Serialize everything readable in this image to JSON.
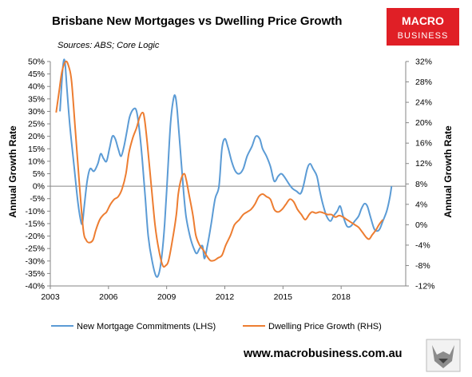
{
  "chart_data": {
    "type": "line",
    "title": "Brisbane New Mortgages vs Dwelling Price Growth",
    "subtitle": "Sources: ABS; Core Logic",
    "ylabel_left": "Annual Growth Rate",
    "ylabel_right": "Annual Growth Rate",
    "xlim": [
      2003,
      2021.33
    ],
    "x_ticks": [
      2003,
      2006,
      2009,
      2012,
      2015,
      2018
    ],
    "x_tick_labels": [
      "2003",
      "2006",
      "2009",
      "2012",
      "2015",
      "2018"
    ],
    "ylim_left": [
      -40,
      50
    ],
    "ylim_right": [
      -12,
      32
    ],
    "y_ticks_left": [
      "50%",
      "45%",
      "40%",
      "35%",
      "30%",
      "25%",
      "20%",
      "15%",
      "10%",
      "5%",
      "0%",
      "-5%",
      "-10%",
      "-15%",
      "-20%",
      "-25%",
      "-30%",
      "-35%",
      "-40%"
    ],
    "y_ticks_right": [
      "32%",
      "28%",
      "24%",
      "20%",
      "16%",
      "12%",
      "8%",
      "4%",
      "0%",
      "-4%",
      "-8%",
      "-12%"
    ],
    "legend_position": "bottom",
    "series": [
      {
        "name": "New Mortgage Commitments (LHS)",
        "axis": "left",
        "color": "#5b9bd5",
        "points": [
          [
            2003.5,
            30
          ],
          [
            2003.65,
            48
          ],
          [
            2003.75,
            50
          ],
          [
            2003.85,
            40
          ],
          [
            2004.0,
            25
          ],
          [
            2004.2,
            10
          ],
          [
            2004.4,
            -5
          ],
          [
            2004.55,
            -13
          ],
          [
            2004.65,
            -15
          ],
          [
            2004.75,
            -8
          ],
          [
            2004.9,
            2
          ],
          [
            2005.05,
            7
          ],
          [
            2005.25,
            6
          ],
          [
            2005.45,
            9
          ],
          [
            2005.6,
            13
          ],
          [
            2005.75,
            11
          ],
          [
            2005.9,
            10
          ],
          [
            2006.05,
            15
          ],
          [
            2006.2,
            20
          ],
          [
            2006.35,
            19
          ],
          [
            2006.5,
            15
          ],
          [
            2006.65,
            12
          ],
          [
            2006.8,
            16
          ],
          [
            2006.95,
            22
          ],
          [
            2007.1,
            28
          ],
          [
            2007.3,
            31
          ],
          [
            2007.45,
            30
          ],
          [
            2007.6,
            22
          ],
          [
            2007.75,
            10
          ],
          [
            2007.9,
            -5
          ],
          [
            2008.05,
            -20
          ],
          [
            2008.25,
            -30
          ],
          [
            2008.45,
            -36
          ],
          [
            2008.6,
            -35
          ],
          [
            2008.75,
            -28
          ],
          [
            2008.9,
            -15
          ],
          [
            2009.05,
            5
          ],
          [
            2009.2,
            25
          ],
          [
            2009.35,
            35
          ],
          [
            2009.45,
            36
          ],
          [
            2009.55,
            30
          ],
          [
            2009.7,
            15
          ],
          [
            2009.85,
            0
          ],
          [
            2010.0,
            -12
          ],
          [
            2010.2,
            -20
          ],
          [
            2010.4,
            -25
          ],
          [
            2010.55,
            -27
          ],
          [
            2010.7,
            -25
          ],
          [
            2010.85,
            -24
          ],
          [
            2010.95,
            -29
          ],
          [
            2011.1,
            -24
          ],
          [
            2011.3,
            -15
          ],
          [
            2011.5,
            -5
          ],
          [
            2011.7,
            0
          ],
          [
            2011.85,
            15
          ],
          [
            2012.0,
            19
          ],
          [
            2012.15,
            16
          ],
          [
            2012.35,
            10
          ],
          [
            2012.55,
            6
          ],
          [
            2012.75,
            5
          ],
          [
            2012.95,
            7
          ],
          [
            2013.15,
            12
          ],
          [
            2013.4,
            16
          ],
          [
            2013.6,
            20
          ],
          [
            2013.8,
            19
          ],
          [
            2013.95,
            15
          ],
          [
            2014.15,
            12
          ],
          [
            2014.35,
            8
          ],
          [
            2014.55,
            2
          ],
          [
            2014.75,
            4
          ],
          [
            2014.9,
            5
          ],
          [
            2015.05,
            4
          ],
          [
            2015.3,
            1
          ],
          [
            2015.5,
            -1
          ],
          [
            2015.7,
            -2
          ],
          [
            2015.9,
            -3
          ],
          [
            2016.05,
            0
          ],
          [
            2016.25,
            7
          ],
          [
            2016.4,
            9
          ],
          [
            2016.55,
            7
          ],
          [
            2016.75,
            4
          ],
          [
            2016.9,
            -2
          ],
          [
            2017.05,
            -7
          ],
          [
            2017.25,
            -12
          ],
          [
            2017.45,
            -14
          ],
          [
            2017.6,
            -12
          ],
          [
            2017.8,
            -10
          ],
          [
            2017.95,
            -8
          ],
          [
            2018.1,
            -12
          ],
          [
            2018.3,
            -16
          ],
          [
            2018.5,
            -16
          ],
          [
            2018.7,
            -14
          ],
          [
            2018.9,
            -12
          ],
          [
            2019.05,
            -9
          ],
          [
            2019.2,
            -7
          ],
          [
            2019.35,
            -8
          ],
          [
            2019.5,
            -12
          ],
          [
            2019.7,
            -17
          ],
          [
            2019.85,
            -18
          ],
          [
            2020.0,
            -17
          ],
          [
            2020.15,
            -14
          ],
          [
            2020.35,
            -10
          ],
          [
            2020.5,
            -5
          ],
          [
            2020.6,
            0
          ]
        ]
      },
      {
        "name": "Dwelling Price Growth (RHS)",
        "axis": "right",
        "color": "#ed7d31",
        "points": [
          [
            2003.3,
            22
          ],
          [
            2003.45,
            26
          ],
          [
            2003.6,
            30
          ],
          [
            2003.8,
            32
          ],
          [
            2003.95,
            31
          ],
          [
            2004.1,
            28
          ],
          [
            2004.3,
            18
          ],
          [
            2004.5,
            8
          ],
          [
            2004.7,
            -1
          ],
          [
            2004.85,
            -3
          ],
          [
            2005.0,
            -3.5
          ],
          [
            2005.2,
            -3
          ],
          [
            2005.35,
            -1
          ],
          [
            2005.55,
            1
          ],
          [
            2005.75,
            2
          ],
          [
            2005.9,
            2.5
          ],
          [
            2006.1,
            4
          ],
          [
            2006.3,
            5
          ],
          [
            2006.5,
            5.5
          ],
          [
            2006.7,
            7
          ],
          [
            2006.9,
            10
          ],
          [
            2007.05,
            14
          ],
          [
            2007.25,
            17
          ],
          [
            2007.45,
            19
          ],
          [
            2007.6,
            21
          ],
          [
            2007.75,
            22
          ],
          [
            2007.85,
            21
          ],
          [
            2008.0,
            16
          ],
          [
            2008.2,
            8
          ],
          [
            2008.4,
            0
          ],
          [
            2008.6,
            -5
          ],
          [
            2008.8,
            -8
          ],
          [
            2008.95,
            -8
          ],
          [
            2009.1,
            -7
          ],
          [
            2009.3,
            -3
          ],
          [
            2009.5,
            2
          ],
          [
            2009.6,
            6
          ],
          [
            2009.75,
            9
          ],
          [
            2009.9,
            10
          ],
          [
            2010.0,
            9
          ],
          [
            2010.15,
            6
          ],
          [
            2010.35,
            2
          ],
          [
            2010.5,
            -2
          ],
          [
            2010.7,
            -4
          ],
          [
            2010.9,
            -5
          ],
          [
            2011.05,
            -6
          ],
          [
            2011.25,
            -7
          ],
          [
            2011.45,
            -7
          ],
          [
            2011.65,
            -6.5
          ],
          [
            2011.85,
            -6
          ],
          [
            2012.05,
            -4
          ],
          [
            2012.3,
            -2
          ],
          [
            2012.5,
            0
          ],
          [
            2012.75,
            1
          ],
          [
            2012.95,
            2
          ],
          [
            2013.15,
            2.5
          ],
          [
            2013.35,
            3
          ],
          [
            2013.55,
            4
          ],
          [
            2013.75,
            5.5
          ],
          [
            2013.95,
            6
          ],
          [
            2014.15,
            5.5
          ],
          [
            2014.35,
            5
          ],
          [
            2014.55,
            3
          ],
          [
            2014.75,
            2.5
          ],
          [
            2014.95,
            3
          ],
          [
            2015.15,
            4
          ],
          [
            2015.35,
            5
          ],
          [
            2015.55,
            4.5
          ],
          [
            2015.75,
            3
          ],
          [
            2015.95,
            2
          ],
          [
            2016.15,
            1
          ],
          [
            2016.35,
            2
          ],
          [
            2016.5,
            2.5
          ],
          [
            2016.7,
            2.3
          ],
          [
            2016.9,
            2.5
          ],
          [
            2017.1,
            2.3
          ],
          [
            2017.3,
            2
          ],
          [
            2017.5,
            2
          ],
          [
            2017.7,
            1.5
          ],
          [
            2017.9,
            1.8
          ],
          [
            2018.1,
            1.5
          ],
          [
            2018.3,
            1
          ],
          [
            2018.5,
            0.5
          ],
          [
            2018.7,
            0
          ],
          [
            2018.9,
            -0.5
          ],
          [
            2019.1,
            -1.5
          ],
          [
            2019.3,
            -2.5
          ],
          [
            2019.45,
            -2.8
          ],
          [
            2019.6,
            -2
          ],
          [
            2019.8,
            -1
          ],
          [
            2019.95,
            0
          ],
          [
            2020.15,
            1
          ]
        ]
      }
    ]
  },
  "legend": {
    "mortgage_label": "New Mortgage Commitments (LHS)",
    "price_label": "Dwelling Price Growth (RHS)"
  },
  "footer": {
    "website": "www.macrobusiness.com.au"
  },
  "logo": {
    "line1": "MACRO",
    "line2": "BUSINESS",
    "color": "#e01f26"
  }
}
